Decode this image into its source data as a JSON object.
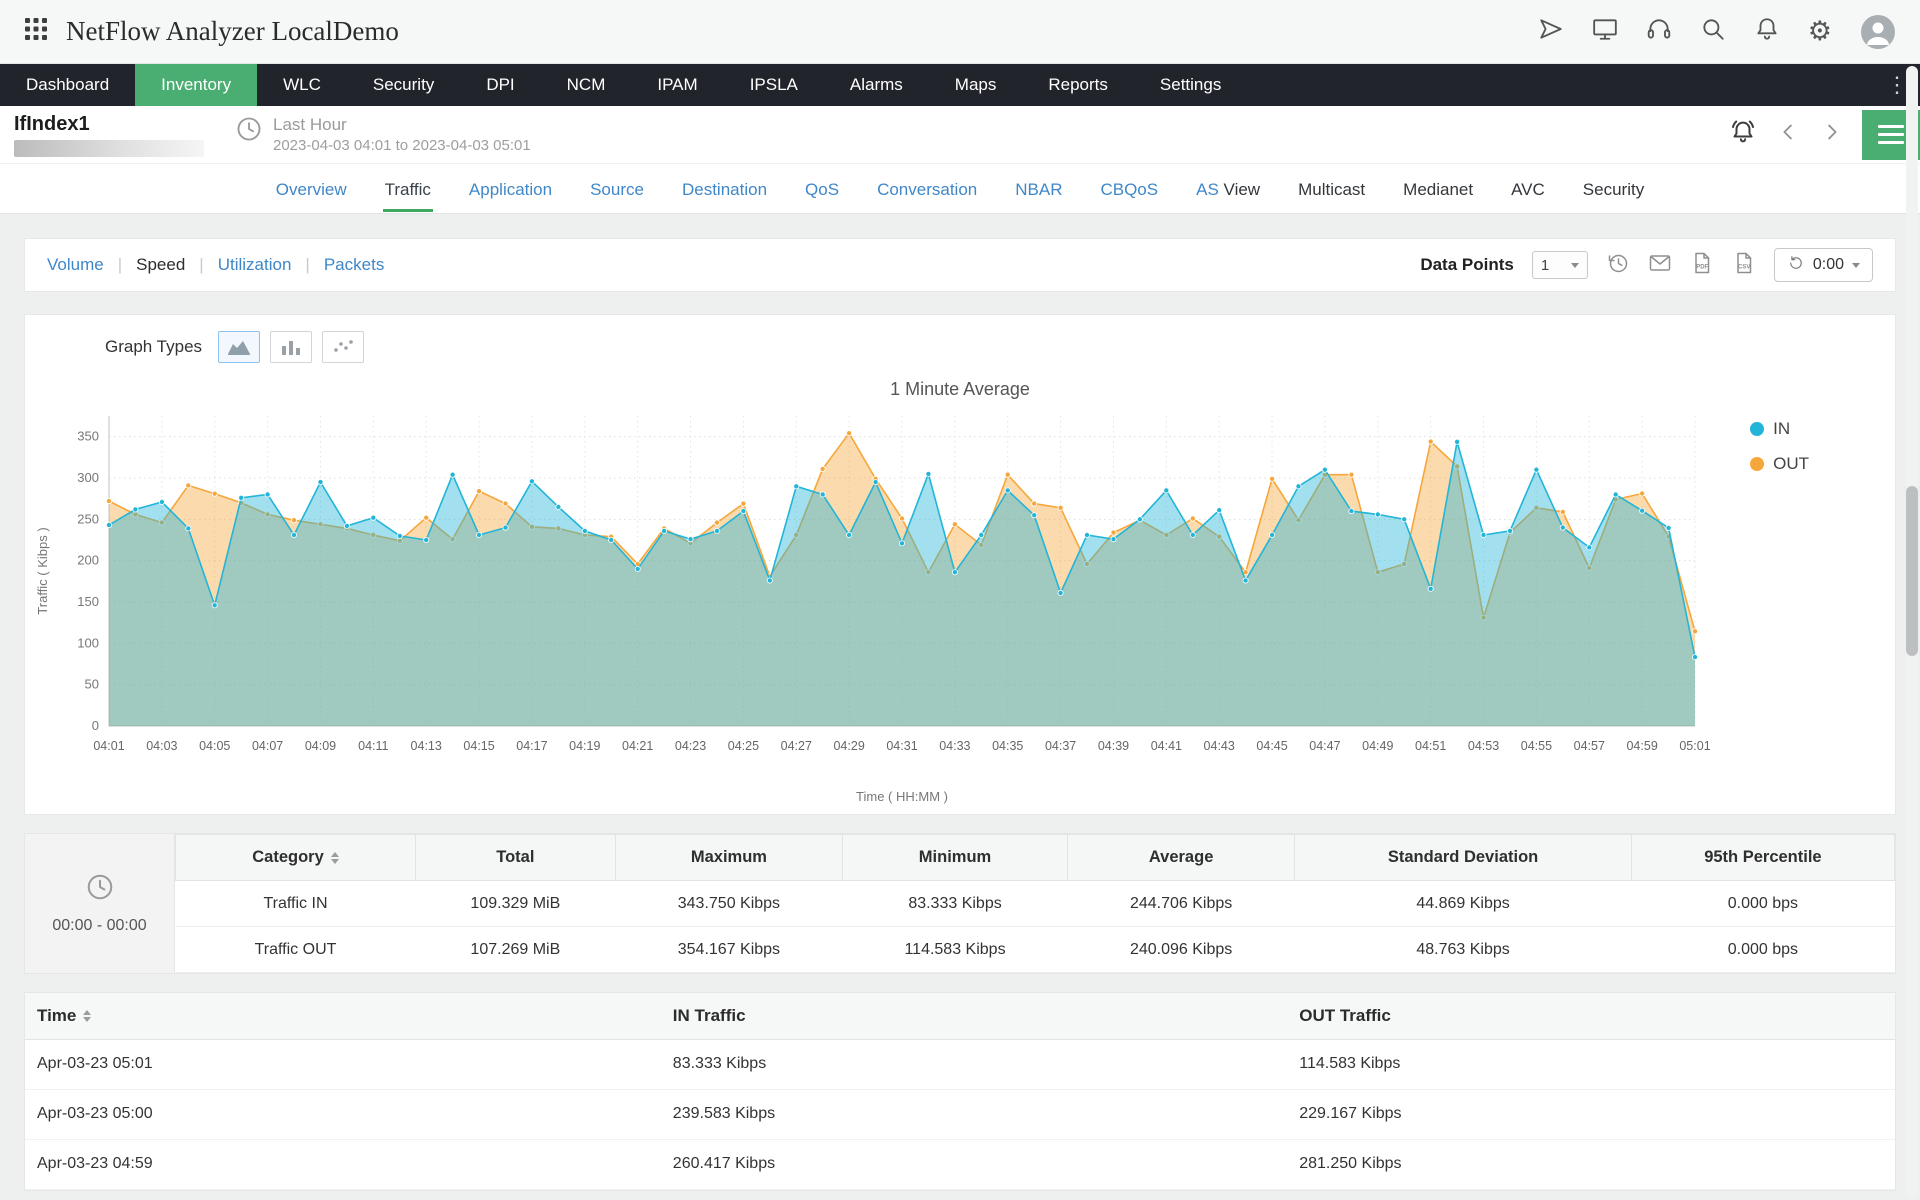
{
  "brand": {
    "title": "NetFlow Analyzer LocalDemo"
  },
  "icons": {
    "topbar": [
      "apps-grid",
      "send",
      "screen-share",
      "headset",
      "search",
      "notifications",
      "settings",
      "user-avatar"
    ],
    "settings_glyph": "⚙",
    "kebab_glyph": "⋮",
    "toolbar": [
      "schedule-history",
      "email",
      "export-pdf",
      "export-csv",
      "refresh-timer"
    ],
    "subheader": [
      "clock",
      "alarm",
      "chevron-left",
      "chevron-right",
      "menu"
    ]
  },
  "nav": {
    "items": [
      "Dashboard",
      "Inventory",
      "WLC",
      "Security",
      "DPI",
      "NCM",
      "IPAM",
      "IPSLA",
      "Alarms",
      "Maps",
      "Reports",
      "Settings"
    ],
    "active": "Inventory"
  },
  "subheader": {
    "interface_name": "IfIndex1",
    "period_label": "Last Hour",
    "period_range": "2023-04-03 04:01 to 2023-04-03 05:01"
  },
  "tabs": {
    "items": [
      "Overview",
      "Traffic",
      "Application",
      "Source",
      "Destination",
      "QoS",
      "Conversation",
      "NBAR",
      "CBQoS",
      "AS View",
      "Multicast",
      "Medianet",
      "AVC",
      "Security"
    ],
    "as_prefix": "AS",
    "as_suffix": "View",
    "active": "Traffic"
  },
  "toolbar": {
    "views": [
      "Volume",
      "Speed",
      "Utilization",
      "Packets"
    ],
    "active_view": "Speed",
    "data_points_label": "Data Points",
    "data_points_value": "1",
    "timer_value": "0:00"
  },
  "graph": {
    "types_label": "Graph Types"
  },
  "chart_data": {
    "type": "area",
    "title": "1 Minute Average",
    "xlabel": "Time ( HH:MM )",
    "ylabel": "Traffic ( Kibps )",
    "ylim": [
      0,
      375
    ],
    "yticks": [
      0,
      50,
      100,
      150,
      200,
      250,
      300,
      350
    ],
    "grid": true,
    "legend_position": "right",
    "x": [
      "04:01",
      "04:02",
      "04:03",
      "04:04",
      "04:05",
      "04:06",
      "04:07",
      "04:08",
      "04:09",
      "04:10",
      "04:11",
      "04:12",
      "04:13",
      "04:14",
      "04:15",
      "04:16",
      "04:17",
      "04:18",
      "04:19",
      "04:20",
      "04:21",
      "04:22",
      "04:23",
      "04:24",
      "04:25",
      "04:26",
      "04:27",
      "04:28",
      "04:29",
      "04:30",
      "04:31",
      "04:32",
      "04:33",
      "04:34",
      "04:35",
      "04:36",
      "04:37",
      "04:38",
      "04:39",
      "04:40",
      "04:41",
      "04:42",
      "04:43",
      "04:44",
      "04:45",
      "04:46",
      "04:47",
      "04:48",
      "04:49",
      "04:50",
      "04:51",
      "04:52",
      "04:53",
      "04:54",
      "04:55",
      "04:56",
      "04:57",
      "04:58",
      "04:59",
      "05:00",
      "05:01"
    ],
    "series": [
      {
        "name": "IN",
        "color": "#22b5d8",
        "values": [
          243,
          262,
          271,
          239,
          146,
          276,
          280,
          231,
          295,
          242,
          252,
          230,
          225,
          304,
          231,
          240,
          296,
          265,
          236,
          225,
          190,
          236,
          226,
          236,
          260,
          176,
          290,
          280,
          231,
          295,
          221,
          305,
          186,
          231,
          285,
          255,
          161,
          231,
          226,
          250,
          285,
          231,
          261,
          176,
          231,
          290,
          310,
          260,
          256,
          250,
          166,
          343.75,
          231,
          236,
          310,
          240,
          216,
          280,
          260.417,
          239.583,
          83.333
        ]
      },
      {
        "name": "OUT",
        "color": "#f6a73b",
        "values": [
          272,
          256,
          246,
          291,
          281,
          270,
          256,
          249,
          244,
          239,
          231,
          224,
          252,
          226,
          284,
          269,
          241,
          239,
          231,
          229,
          196,
          239,
          221,
          246,
          269,
          181,
          231,
          311,
          354.167,
          299,
          251,
          186,
          244,
          219,
          304,
          269,
          264,
          196,
          234,
          249,
          231,
          251,
          229,
          186,
          299,
          249,
          304,
          304,
          186,
          196,
          344,
          314,
          131,
          234,
          264,
          259,
          191,
          274,
          281.25,
          229.167,
          114.583
        ]
      }
    ]
  },
  "summary_table": {
    "time_range": "00:00 - 00:00",
    "headers": [
      "Category",
      "Total",
      "Maximum",
      "Minimum",
      "Average",
      "Standard Deviation",
      "95th Percentile"
    ],
    "rows": [
      {
        "category": "Traffic IN",
        "total": "109.329 MiB",
        "maximum": "343.750 Kibps",
        "minimum": "83.333 Kibps",
        "average": "244.706 Kibps",
        "std_dev": "44.869 Kibps",
        "percentile_95": "0.000 bps"
      },
      {
        "category": "Traffic OUT",
        "total": "107.269 MiB",
        "maximum": "354.167 Kibps",
        "minimum": "114.583 Kibps",
        "average": "240.096 Kibps",
        "std_dev": "48.763 Kibps",
        "percentile_95": "0.000 bps"
      }
    ]
  },
  "traffic_table": {
    "headers": [
      "Time",
      "IN Traffic",
      "OUT Traffic"
    ],
    "rows": [
      [
        "Apr-03-23 05:01",
        "83.333 Kibps",
        "114.583 Kibps"
      ],
      [
        "Apr-03-23 05:00",
        "239.583 Kibps",
        "229.167 Kibps"
      ],
      [
        "Apr-03-23 04:59",
        "260.417 Kibps",
        "281.250 Kibps"
      ]
    ]
  },
  "colors": {
    "accent_green": "#4aad72",
    "link_blue": "#3f87c9",
    "nav_bg": "#21242b",
    "in_series": "#22b5d8",
    "out_series": "#f6a73b"
  }
}
